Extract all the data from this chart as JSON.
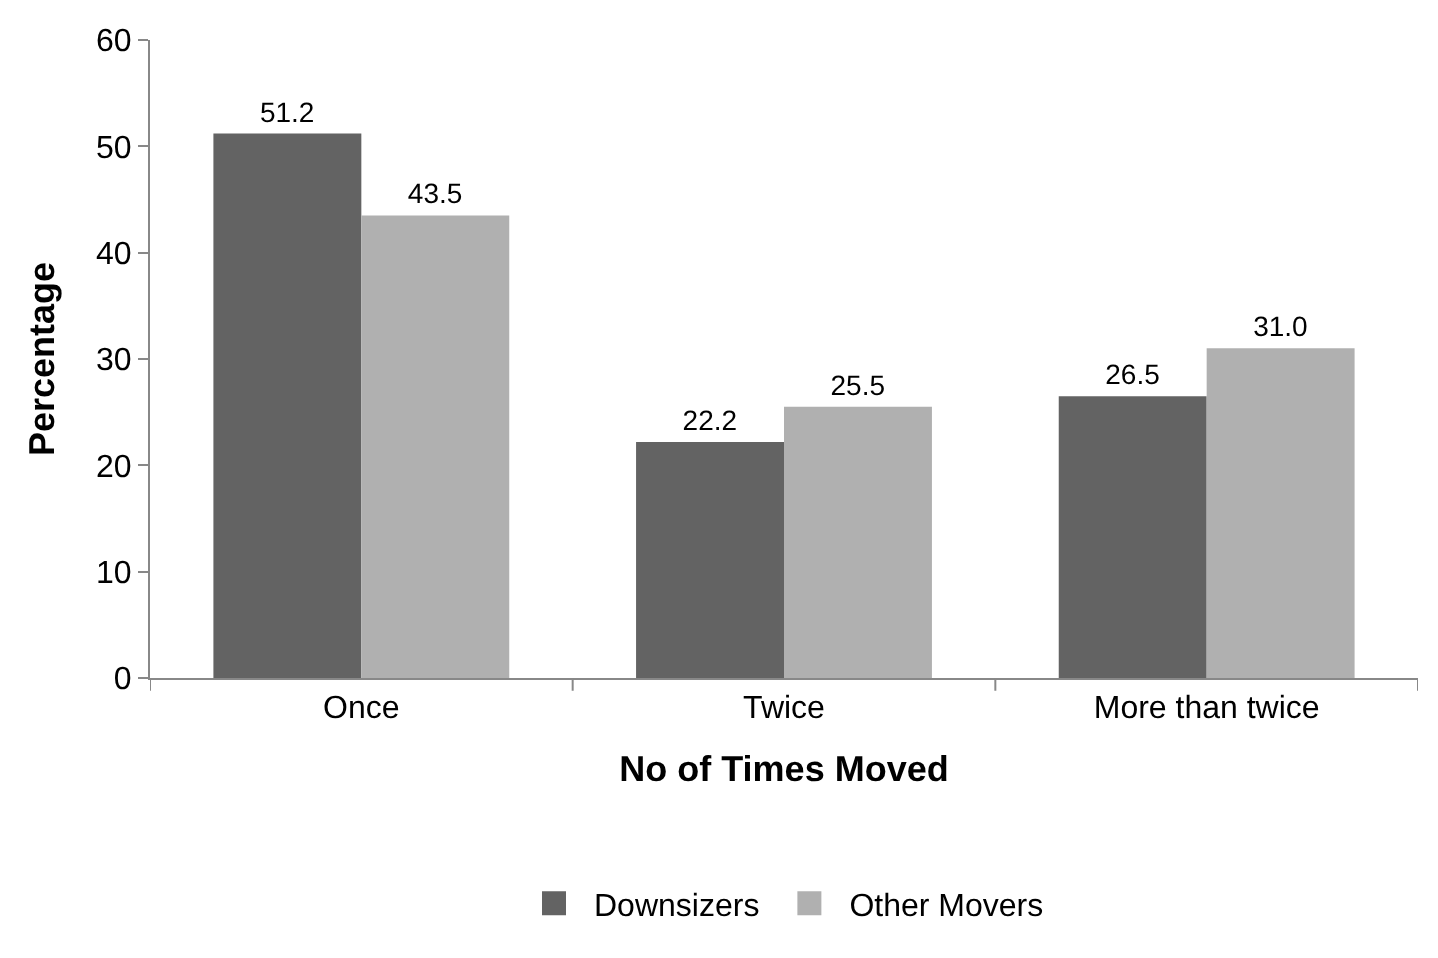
{
  "chart_data": {
    "type": "bar",
    "xlabel": "No of Times Moved",
    "ylabel": "Percentage",
    "categories": [
      "Once",
      "Twice",
      "More than twice"
    ],
    "series": [
      {
        "name": "Downsizers",
        "color": "#636363",
        "values": [
          51.2,
          22.2,
          26.5
        ],
        "value_labels": [
          "51.2",
          "22.2",
          "26.5"
        ]
      },
      {
        "name": "Other Movers",
        "color": "#b0b0b0",
        "values": [
          43.5,
          25.5,
          31.0
        ],
        "value_labels": [
          "43.5",
          "25.5",
          "31.0"
        ]
      }
    ],
    "ylim": [
      0,
      60
    ],
    "yticks": [
      0,
      10,
      20,
      30,
      40,
      50,
      60
    ],
    "grid": false,
    "legend": "bottom"
  }
}
